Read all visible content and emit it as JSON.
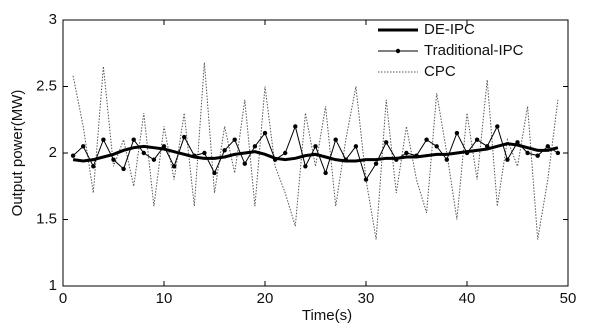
{
  "chart_data": {
    "type": "line",
    "xlabel": "Time(s)",
    "ylabel": "Output power(MW)",
    "xlim": [
      0,
      50
    ],
    "xticks": [
      0,
      10,
      20,
      30,
      40,
      50
    ],
    "ylim": [
      1,
      3
    ],
    "yticks": [
      1,
      1.5,
      2,
      2.5,
      3
    ],
    "grid": false,
    "legend": "upper right",
    "x": [
      1,
      2,
      3,
      4,
      5,
      6,
      7,
      8,
      9,
      10,
      11,
      12,
      13,
      14,
      15,
      16,
      17,
      18,
      19,
      20,
      21,
      22,
      23,
      24,
      25,
      26,
      27,
      28,
      29,
      30,
      31,
      32,
      33,
      34,
      35,
      36,
      37,
      38,
      39,
      40,
      41,
      42,
      43,
      44,
      45,
      46,
      47,
      48,
      49
    ],
    "series": [
      {
        "name": "DE-IPC",
        "color": "#000000",
        "line_width": 3,
        "dash": "solid",
        "marker": "none",
        "values": [
          1.95,
          1.94,
          1.95,
          1.97,
          1.99,
          2.02,
          2.04,
          2.05,
          2.04,
          2.03,
          2.01,
          1.99,
          1.97,
          1.96,
          1.96,
          1.97,
          1.99,
          2.0,
          2.01,
          1.99,
          1.96,
          1.95,
          1.96,
          1.98,
          1.99,
          1.97,
          1.95,
          1.94,
          1.94,
          1.95,
          1.95,
          1.96,
          1.96,
          1.97,
          1.97,
          1.98,
          1.99,
          1.99,
          2.0,
          2.01,
          2.02,
          2.03,
          2.05,
          2.07,
          2.06,
          2.04,
          2.02,
          2.02,
          2.04
        ]
      },
      {
        "name": "Traditional-IPC",
        "color": "#000000",
        "line_width": 1,
        "dash": "solid",
        "marker": "dot",
        "values": [
          1.98,
          2.05,
          1.9,
          2.1,
          1.95,
          1.88,
          2.1,
          2.0,
          1.95,
          2.05,
          1.9,
          2.12,
          1.98,
          2.0,
          1.85,
          2.02,
          2.1,
          1.92,
          2.05,
          2.15,
          1.95,
          2.0,
          2.2,
          1.9,
          2.05,
          1.85,
          2.1,
          1.95,
          2.05,
          1.8,
          1.92,
          2.08,
          1.95,
          2.0,
          1.98,
          2.1,
          2.05,
          1.95,
          2.15,
          2.0,
          2.1,
          2.05,
          2.2,
          1.95,
          2.08,
          2.0,
          1.98,
          2.05,
          2.0
        ]
      },
      {
        "name": "CPC",
        "color": "#555555",
        "line_width": 1,
        "dash": "dotted",
        "marker": "none",
        "values": [
          2.58,
          2.2,
          1.7,
          2.65,
          1.9,
          2.1,
          1.75,
          2.3,
          1.6,
          2.2,
          1.8,
          2.3,
          1.6,
          2.68,
          1.7,
          2.2,
          1.85,
          2.4,
          1.6,
          2.5,
          1.9,
          1.7,
          1.45,
          2.3,
          1.9,
          2.35,
          1.6,
          2.1,
          2.5,
          1.8,
          1.35,
          2.4,
          1.7,
          2.2,
          1.8,
          1.55,
          2.45,
          2.0,
          1.5,
          2.3,
          1.8,
          2.55,
          1.6,
          2.1,
          1.9,
          2.35,
          1.35,
          1.8,
          2.4
        ]
      }
    ]
  }
}
